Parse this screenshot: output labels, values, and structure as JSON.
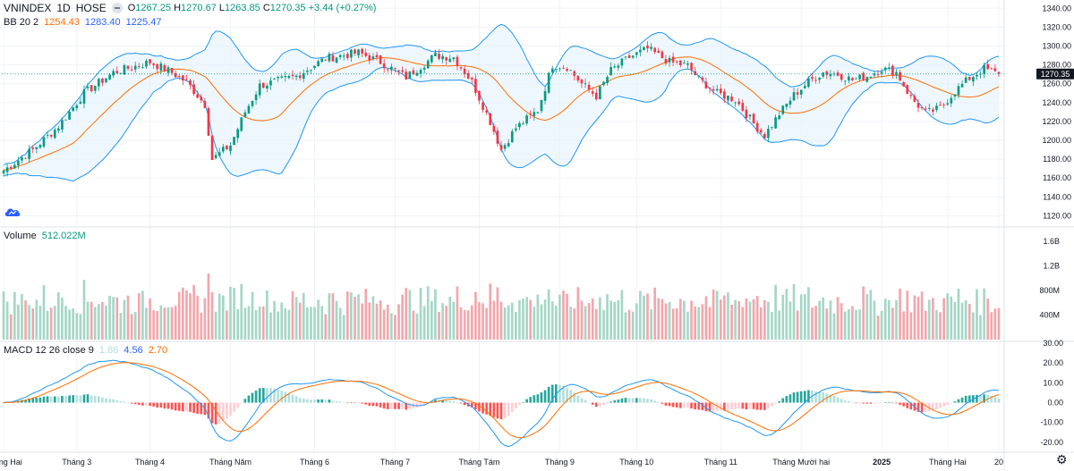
{
  "header": {
    "symbol": "VNINDEX",
    "interval": "1D",
    "exchange": "HOSE",
    "ohlc": {
      "o_label": "O",
      "o": "1267.25",
      "h_label": "H",
      "h": "1270.67",
      "l_label": "L",
      "l": "1263.85",
      "c_label": "C",
      "c": "1270.35",
      "change": "+3.44 (+0.27%)"
    }
  },
  "bb_legend": {
    "label": "BB 20 2",
    "middle": "1254.43",
    "upper": "1283.40",
    "lower": "1225.47"
  },
  "volume_legend": {
    "label": "Volume",
    "value": "512.022M"
  },
  "macd_legend": {
    "label": "MACD 12 26 close 9",
    "hist": "1.86",
    "macd": "4.56",
    "signal": "2.70"
  },
  "price_axis": {
    "ticks": [
      "1340.00",
      "1320.00",
      "1300.00",
      "1280.00",
      "1260.00",
      "1240.00",
      "1220.00",
      "1200.00",
      "1180.00",
      "1160.00",
      "1140.00",
      "1120.00"
    ],
    "last_price_badge": "1270.35"
  },
  "volume_axis": {
    "ticks": [
      "1.6B",
      "1.2B",
      "800M",
      "400M"
    ]
  },
  "macd_axis": {
    "ticks": [
      "30.00",
      "20.00",
      "10.00",
      "0.00",
      "-10.00",
      "-20.00"
    ]
  },
  "time_axis": {
    "labels": [
      "Tháng Hai",
      "Tháng 3",
      "Tháng 4",
      "Tháng Năm",
      "Tháng 6",
      "Tháng 7",
      "Tháng Tám",
      "Tháng 9",
      "Tháng 10",
      "Tháng 11",
      "Tháng Mười hai",
      "2025",
      "Tháng Hai",
      "20"
    ]
  },
  "colors": {
    "up": "#089981",
    "down": "#f23645",
    "vol_up": "#a5d6c6",
    "vol_down": "#f3a6ab",
    "bb_band": "#2196f3",
    "bb_basis": "#ff6d00",
    "bb_fill": "#e3f2fd",
    "macd_line": "#2196f3",
    "signal_line": "#ff6d00",
    "hist_up_strong": "#26a69a",
    "hist_up_weak": "#b2dfdb",
    "hist_down_strong": "#ff5252",
    "hist_down_weak": "#ffcdd2",
    "grid": "#f0f3fa",
    "axis_text": "#131722",
    "badge_bg": "#131722"
  },
  "icons": {
    "logo": "tradingview-cloud-icon",
    "settings": "gear-icon",
    "visibility": "eye-toggle-icon"
  },
  "chart_data": {
    "type": "candlestick",
    "title": "VNINDEX 1D HOSE",
    "x_range": [
      "2024-02",
      "2025-02-20"
    ],
    "price_ylim": [
      1110,
      1345
    ],
    "price_keypoints": [
      [
        0,
        1168
      ],
      [
        8,
        1190
      ],
      [
        15,
        1215
      ],
      [
        22,
        1250
      ],
      [
        30,
        1272
      ],
      [
        40,
        1283
      ],
      [
        45,
        1274
      ],
      [
        50,
        1262
      ],
      [
        55,
        1238
      ],
      [
        57,
        1180
      ],
      [
        62,
        1195
      ],
      [
        66,
        1230
      ],
      [
        70,
        1258
      ],
      [
        80,
        1268
      ],
      [
        88,
        1287
      ],
      [
        97,
        1293
      ],
      [
        103,
        1283
      ],
      [
        110,
        1267
      ],
      [
        118,
        1290
      ],
      [
        123,
        1288
      ],
      [
        128,
        1262
      ],
      [
        133,
        1220
      ],
      [
        136,
        1190
      ],
      [
        140,
        1213
      ],
      [
        146,
        1232
      ],
      [
        150,
        1280
      ],
      [
        154,
        1278
      ],
      [
        158,
        1260
      ],
      [
        162,
        1247
      ],
      [
        166,
        1274
      ],
      [
        171,
        1288
      ],
      [
        176,
        1297
      ],
      [
        182,
        1283
      ],
      [
        187,
        1279
      ],
      [
        190,
        1265
      ],
      [
        195,
        1250
      ],
      [
        200,
        1243
      ],
      [
        205,
        1218
      ],
      [
        208,
        1205
      ],
      [
        212,
        1228
      ],
      [
        216,
        1248
      ],
      [
        220,
        1262
      ],
      [
        224,
        1272
      ],
      [
        228,
        1270
      ],
      [
        232,
        1264
      ],
      [
        236,
        1268
      ],
      [
        240,
        1276
      ],
      [
        244,
        1272
      ],
      [
        248,
        1245
      ],
      [
        252,
        1229
      ],
      [
        256,
        1234
      ],
      [
        260,
        1252
      ],
      [
        264,
        1266
      ],
      [
        268,
        1276
      ],
      [
        272,
        1270
      ]
    ],
    "last_close": 1270.35,
    "bollinger": {
      "period": 20,
      "mult": 2,
      "basis_last": 1254.43,
      "upper_last": 1283.4,
      "lower_last": 1225.47
    },
    "volume_ylim": [
      0,
      1800000000
    ],
    "volume_last": 512022000,
    "macd": {
      "fast": 12,
      "slow": 26,
      "signal": 9,
      "macd_last": 4.56,
      "signal_last": 2.7,
      "hist_last": 1.86,
      "ylim": [
        -25,
        30
      ]
    },
    "grid": true
  }
}
